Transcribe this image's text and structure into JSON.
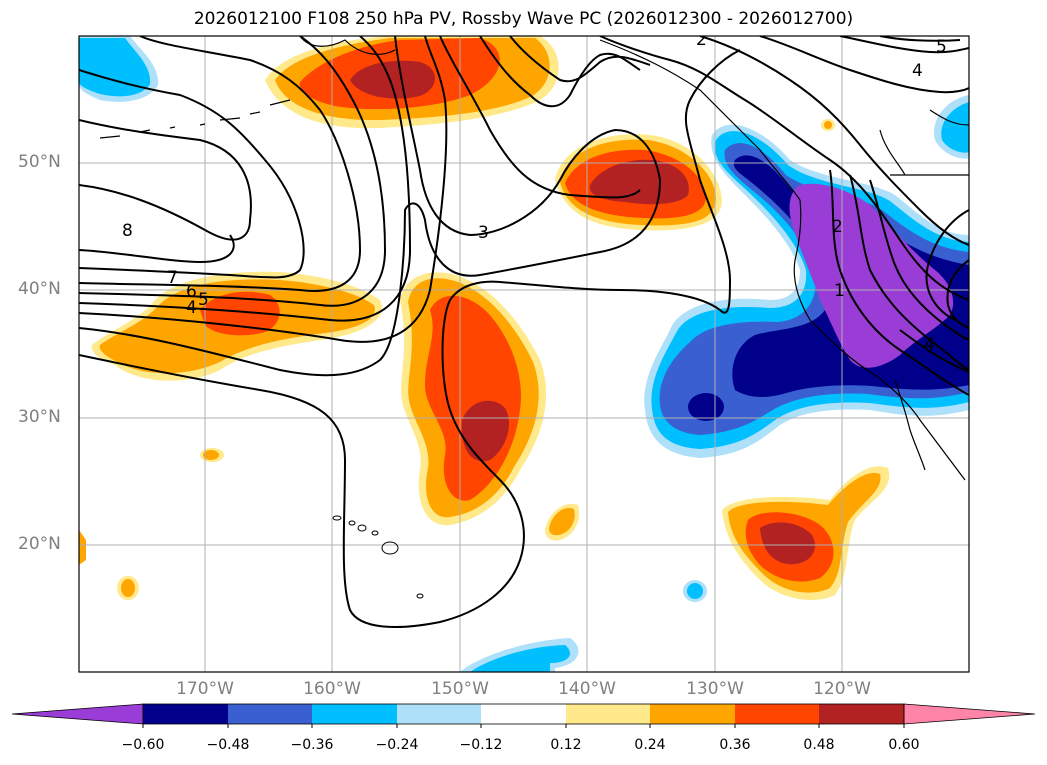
{
  "title": "2026012100 F108 250 hPa PV, Rossby Wave PC (2026012300 - 2026012700)",
  "lat_labels": [
    "50°N",
    "40°N",
    "30°N",
    "20°N"
  ],
  "lon_labels": [
    "170°W",
    "160°W",
    "150°W",
    "140°W",
    "130°W",
    "120°W"
  ],
  "contour_labels": [
    "8",
    "7",
    "6",
    "5",
    "4",
    "3",
    "2",
    "1",
    "2",
    "4",
    "5",
    "4"
  ],
  "colorbar": {
    "tick_labels": [
      "−0.60",
      "−0.48",
      "−0.36",
      "−0.24",
      "−0.12",
      "0.12",
      "0.24",
      "0.36",
      "0.48",
      "0.60"
    ],
    "colors": [
      "#9a3dd6",
      "#00008b",
      "#3a5fd0",
      "#00bfff",
      "#aee0fa",
      "#ffffff",
      "#ffe98a",
      "#ffa500",
      "#ff4500",
      "#b22222",
      "#ff85a8"
    ]
  }
}
